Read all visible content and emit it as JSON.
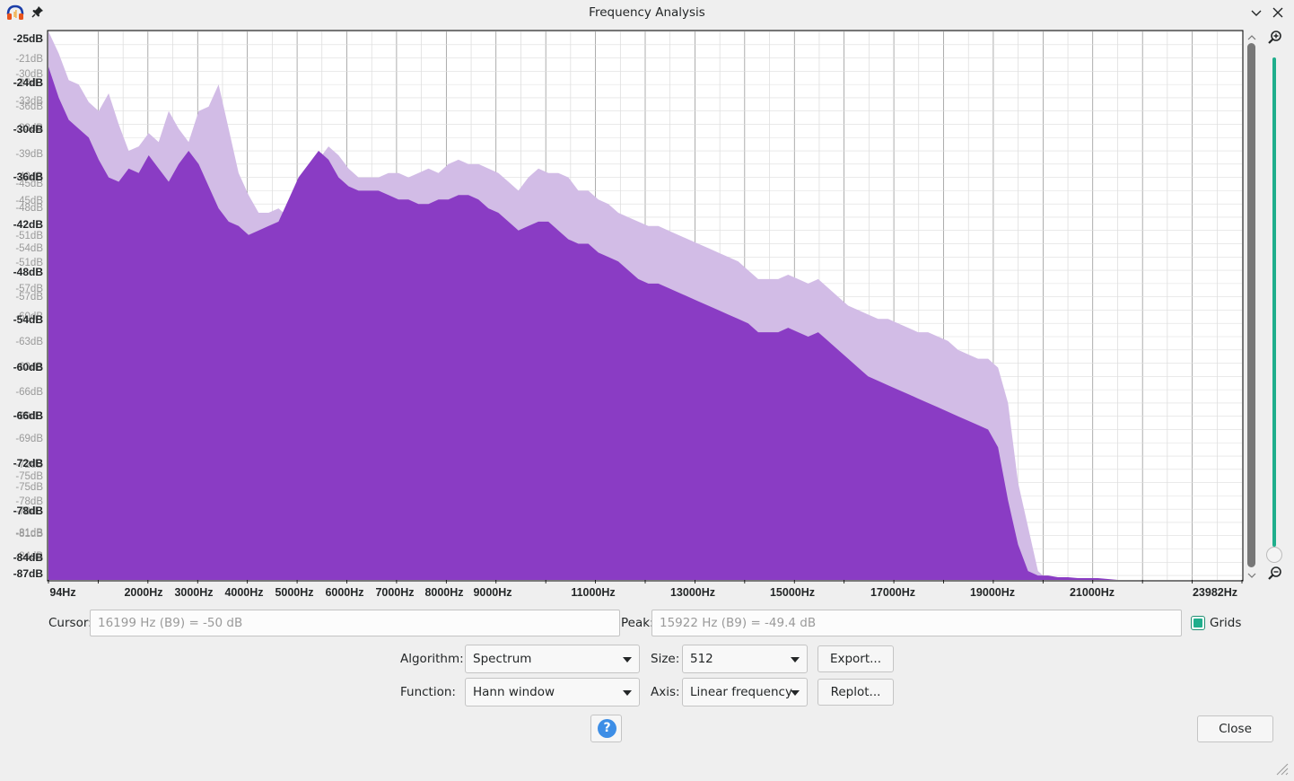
{
  "window": {
    "title": "Frequency Analysis"
  },
  "chart_data": {
    "type": "area",
    "x_ticks": [
      "94Hz",
      "2000Hz",
      "3000Hz",
      "4000Hz",
      "5000Hz",
      "6000Hz",
      "7000Hz",
      "8000Hz",
      "9000Hz",
      "11000Hz",
      "13000Hz",
      "15000Hz",
      "17000Hz",
      "19000Hz",
      "21000Hz",
      "23982Hz"
    ],
    "y_ticks_bold": [
      "-25dB",
      "-24dB",
      "-30dB",
      "-36dB",
      "-42dB",
      "-48dB",
      "-54dB",
      "-60dB",
      "-66dB",
      "-72dB",
      "-78dB",
      "-84dB",
      "-87dB"
    ],
    "y_ticks_light": [
      "-21dB",
      "-30dB",
      "-27dB",
      "-33dB",
      "-36dB",
      "-33dB",
      "-39dB",
      "-42dB",
      "-45dB",
      "-45dB",
      "-48dB",
      "-51dB",
      "-54dB",
      "-51dB",
      "-57dB",
      "-57dB",
      "-60dB",
      "-63dB",
      "-63dB",
      "-66dB",
      "-69dB",
      "-69dB",
      "-72dB",
      "-75dB",
      "-75dB",
      "-78dB",
      "-78dB",
      "-81dB",
      "-81dB",
      "-84dB"
    ],
    "ylim": [
      -87,
      -25
    ],
    "xlim": [
      94,
      23982
    ],
    "grid": true,
    "series": [
      {
        "color": "#d2bce6",
        "x": [
          94,
          300,
          500,
          700,
          900,
          1100,
          1300,
          1500,
          1700,
          1900,
          2100,
          2300,
          2500,
          2700,
          2900,
          3100,
          3300,
          3500,
          3700,
          3900,
          4100,
          4300,
          4500,
          4700,
          4900,
          5100,
          5300,
          5500,
          5700,
          5900,
          6100,
          6300,
          6500,
          6700,
          6900,
          7100,
          7300,
          7500,
          7700,
          7900,
          8100,
          8300,
          8500,
          8700,
          8900,
          9100,
          9300,
          9500,
          9700,
          9900,
          10100,
          10300,
          10500,
          10700,
          10900,
          11100,
          11300,
          11500,
          11700,
          11900,
          12100,
          12300,
          12500,
          12700,
          12900,
          13100,
          13300,
          13500,
          13700,
          13900,
          14100,
          14300,
          14500,
          14700,
          14900,
          15100,
          15300,
          15500,
          15700,
          15900,
          16100,
          16300,
          16500,
          16700,
          16900,
          17100,
          17300,
          17500,
          17700,
          17900,
          18100,
          18300,
          18500,
          18700,
          18900,
          19100,
          19300,
          19500,
          19700,
          19900,
          20100,
          20300,
          20500,
          20700,
          20900,
          21100,
          21300,
          21500,
          21700,
          21900,
          22100,
          22300,
          22500,
          22700,
          22900,
          23100,
          23300,
          23500,
          23700,
          23982
        ],
        "y": [
          -25,
          -27.5,
          -30.5,
          -31,
          -33,
          -34,
          -32,
          -35.5,
          -38.5,
          -38,
          -36.5,
          -37.5,
          -34,
          -36,
          -37.5,
          -34,
          -33.5,
          -31,
          -36,
          -41,
          -43.5,
          -45.5,
          -45.5,
          -45,
          -46,
          -43.5,
          -41,
          -39.5,
          -38,
          -39,
          -40.5,
          -41.5,
          -41.5,
          -41.5,
          -41,
          -41,
          -41.5,
          -41,
          -40.5,
          -41,
          -40,
          -39.5,
          -40,
          -40,
          -40.5,
          -41,
          -42,
          -43,
          -41.5,
          -40.5,
          -41,
          -41,
          -41.5,
          -43,
          -43,
          -44,
          -44.5,
          -45.5,
          -46,
          -46.5,
          -47,
          -47,
          -47.5,
          -48,
          -48.5,
          -49,
          -49.5,
          -50,
          -50.5,
          -51,
          -52,
          -53,
          -53,
          -53,
          -52.5,
          -53,
          -53.5,
          -53,
          -54,
          -55,
          -56,
          -56.5,
          -57,
          -57.5,
          -57.5,
          -58,
          -58.5,
          -59,
          -59,
          -59.5,
          -60,
          -61,
          -61.5,
          -62,
          -62,
          -63,
          -67,
          -76,
          -81,
          -86,
          -87,
          -87,
          -87,
          -87,
          -87,
          -87,
          -87,
          -87,
          -87,
          -87,
          -87,
          -87,
          -87,
          -87,
          -87,
          -87,
          -87,
          -87,
          -87,
          -87
        ]
      },
      {
        "color": "#8a3cc4",
        "x": [
          94,
          300,
          500,
          700,
          900,
          1100,
          1300,
          1500,
          1700,
          1900,
          2100,
          2300,
          2500,
          2700,
          2900,
          3100,
          3300,
          3500,
          3700,
          3900,
          4100,
          4300,
          4500,
          4700,
          4900,
          5100,
          5300,
          5500,
          5700,
          5900,
          6100,
          6300,
          6500,
          6700,
          6900,
          7100,
          7300,
          7500,
          7700,
          7900,
          8100,
          8300,
          8500,
          8700,
          8900,
          9100,
          9300,
          9500,
          9700,
          9900,
          10100,
          10300,
          10500,
          10700,
          10900,
          11100,
          11300,
          11500,
          11700,
          11900,
          12100,
          12300,
          12500,
          12700,
          12900,
          13100,
          13300,
          13500,
          13700,
          13900,
          14100,
          14300,
          14500,
          14700,
          14900,
          15100,
          15300,
          15500,
          15700,
          15900,
          16100,
          16300,
          16500,
          16700,
          16900,
          17100,
          17300,
          17500,
          17700,
          17900,
          18100,
          18300,
          18500,
          18700,
          18900,
          19100,
          19300,
          19500,
          19700,
          19900,
          20100,
          20300,
          20500,
          20700,
          20900,
          21100,
          21300,
          21500,
          21700,
          21900,
          22100,
          22300,
          22500,
          22700,
          22900,
          23100,
          23300,
          23500,
          23700,
          23982
        ],
        "y": [
          -29,
          -32.5,
          -35,
          -36,
          -37,
          -39.5,
          -41.5,
          -42,
          -40.5,
          -41,
          -39,
          -40.5,
          -42,
          -40,
          -38.5,
          -40,
          -42.5,
          -45,
          -46.5,
          -47,
          -48,
          -47.5,
          -47,
          -46.5,
          -44,
          -41.5,
          -40,
          -38.5,
          -39.5,
          -41.5,
          -42.5,
          -43,
          -43,
          -43,
          -43.5,
          -44,
          -44,
          -44.5,
          -44.5,
          -44,
          -44,
          -43.5,
          -43.5,
          -44,
          -45,
          -45.5,
          -46.5,
          -47.5,
          -47,
          -46.5,
          -46.5,
          -47.5,
          -48.5,
          -49,
          -49,
          -50,
          -50.5,
          -51,
          -52,
          -53,
          -53.5,
          -53.5,
          -54,
          -54.5,
          -55,
          -55.5,
          -56,
          -56.5,
          -57,
          -57.5,
          -58,
          -59,
          -59,
          -59,
          -58.5,
          -59,
          -59.5,
          -59,
          -60,
          -61,
          -62,
          -63,
          -64,
          -64.5,
          -65,
          -65.5,
          -66,
          -66.5,
          -67,
          -67.5,
          -68,
          -68.5,
          -69,
          -69.5,
          -70,
          -72,
          -78,
          -83,
          -86,
          -86.5,
          -86.5,
          -86.7,
          -86.7,
          -86.8,
          -86.8,
          -86.8,
          -86.9,
          -87,
          -87,
          -87,
          -87,
          -87,
          -87,
          -87,
          -87,
          -87,
          -87,
          -87,
          -87,
          -87
        ]
      }
    ]
  },
  "cursor": {
    "label": "Cursor:",
    "value": "16199 Hz (B9) = -50 dB"
  },
  "peak": {
    "label": "Peak:",
    "value": "15922 Hz (B9) = -49.4 dB"
  },
  "grids": {
    "label": "Grids",
    "checked": true
  },
  "algorithm": {
    "label": "Algorithm:",
    "value": "Spectrum"
  },
  "size": {
    "label": "Size:",
    "value": "512"
  },
  "function": {
    "label": "Function:",
    "value": "Hann window"
  },
  "axis": {
    "label": "Axis:",
    "value": "Linear frequency"
  },
  "buttons": {
    "export": "Export...",
    "replot": "Replot...",
    "close": "Close",
    "help": "?"
  },
  "colors": {
    "accent": "#1fae8c",
    "spectrum_fill": "#8a3cc4",
    "spectrum_max_fill": "#d2bce6"
  }
}
